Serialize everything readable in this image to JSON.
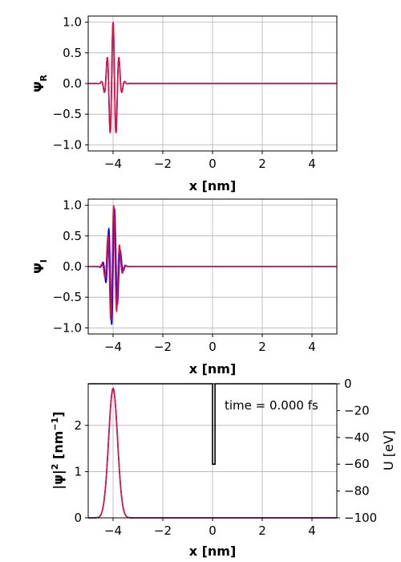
{
  "figure": {
    "background": "#ffffff"
  },
  "colors": {
    "series_a": "#0000ff",
    "series_b": "#dc143c",
    "potential": "#000000",
    "grid": "#b0b0b0"
  },
  "chart_data": [
    {
      "type": "line",
      "id": "psi-real",
      "xlabel": "x  [nm]",
      "ylabel": "ΨR",
      "ylabel_main": "Ψ",
      "ylabel_sub": "R",
      "xlim": [
        -5,
        5
      ],
      "ylim": [
        -1.1,
        1.1
      ],
      "xticks": [
        -4,
        -2,
        0,
        2,
        4
      ],
      "xtick_labels": [
        "−4",
        "−2",
        "0",
        "2",
        "4"
      ],
      "yticks": [
        -1.0,
        -0.5,
        0.0,
        0.5,
        1.0
      ],
      "ytick_labels": [
        "−1.0",
        "−0.5",
        "0.0",
        "0.5",
        "1.0"
      ],
      "grid": true,
      "series": [
        {
          "kind": "wavepacket",
          "component": "cos",
          "center": -4.0,
          "amplitude": 1.0,
          "sigma": 0.18,
          "k": 26.0,
          "color": "#0000ff"
        },
        {
          "kind": "wavepacket",
          "component": "cos",
          "center": -4.0,
          "amplitude": 1.0,
          "sigma": 0.18,
          "k": 26.0,
          "color": "#dc143c"
        }
      ]
    },
    {
      "type": "line",
      "id": "psi-imag",
      "xlabel": "x [nm]",
      "ylabel": "ΨI",
      "ylabel_main": "Ψ",
      "ylabel_sub": "I",
      "xlim": [
        -5,
        5
      ],
      "ylim": [
        -1.1,
        1.1
      ],
      "xticks": [
        -4,
        -2,
        0,
        2,
        4
      ],
      "xtick_labels": [
        "−4",
        "−2",
        "0",
        "2",
        "4"
      ],
      "yticks": [
        -1.0,
        -0.5,
        0.0,
        0.5,
        1.0
      ],
      "ytick_labels": [
        "−1.0",
        "−0.5",
        "0.0",
        "0.5",
        "1.0"
      ],
      "grid": true,
      "series": [
        {
          "kind": "wavepacket",
          "component": "sin",
          "center": -4.0,
          "amplitude": 1.0,
          "sigma": 0.18,
          "k": 26.0,
          "phase": 0.0,
          "color": "#0000ff"
        },
        {
          "kind": "wavepacket",
          "component": "sin",
          "center": -4.0,
          "amplitude": 1.0,
          "sigma": 0.18,
          "k": 26.0,
          "phase": 0.9,
          "color": "#dc143c"
        }
      ]
    },
    {
      "type": "line",
      "id": "probability-density",
      "xlabel": "x  [nm]",
      "ylabel": "|ψ|²  [nm⁻¹]",
      "ylabel_base": "|ψ|",
      "ylabel_sup": "2",
      "ylabel_unit_base": "[nm",
      "ylabel_unit_sup": "−1",
      "ylabel_unit_end": "]",
      "y2label": "U   [eV]",
      "xlim": [
        -5,
        5
      ],
      "ylim": [
        0,
        2.9
      ],
      "y2lim": [
        -100,
        0
      ],
      "xticks": [
        -4,
        -2,
        0,
        2,
        4
      ],
      "xtick_labels": [
        "−4",
        "−2",
        "0",
        "2",
        "4"
      ],
      "yticks": [
        0,
        1,
        2
      ],
      "ytick_labels": [
        "0",
        "1",
        "2"
      ],
      "y2ticks": [
        0,
        -20,
        -40,
        -60,
        -80,
        -100
      ],
      "y2tick_labels": [
        "0",
        "−20",
        "−40",
        "−60",
        "−80",
        "−100"
      ],
      "grid": true,
      "annotation": "time = 0.000 fs",
      "series": [
        {
          "kind": "gaussian",
          "center": -4.0,
          "peak": 2.8,
          "sigma": 0.18,
          "color": "#0000ff"
        },
        {
          "kind": "gaussian",
          "center": -4.0,
          "peak": 2.8,
          "sigma": 0.18,
          "color": "#dc143c"
        }
      ],
      "potential": {
        "well_x": [
          0.0,
          0.1
        ],
        "depth": -60,
        "outside": 0,
        "color": "#000000"
      }
    }
  ]
}
